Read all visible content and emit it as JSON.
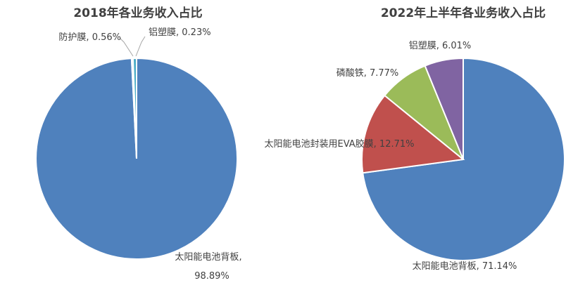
{
  "chart_data": [
    {
      "type": "pie",
      "title": "2018年各业务收入占比",
      "unit": "%",
      "slices": [
        {
          "label": "太阳能电池背板",
          "value": 98.89,
          "value_text": "98.89%",
          "color": "#4f81bd"
        },
        {
          "label": "铝塑膜",
          "value": 0.23,
          "value_text": "0.23%",
          "color": "#8064a2"
        },
        {
          "label": "防护膜",
          "value": 0.56,
          "value_text": "0.56%",
          "color": "#4bacc6"
        }
      ]
    },
    {
      "type": "pie",
      "title": "2022年上半年各业务收入占比",
      "unit": "%",
      "slices": [
        {
          "label": "太阳能电池背板",
          "value": 71.14,
          "value_text": "71.14%",
          "color": "#4f81bd"
        },
        {
          "label": "太阳能电池封装用EVA胶膜",
          "value": 12.71,
          "value_text": "12.71%",
          "color": "#c0504d"
        },
        {
          "label": "磷酸铁",
          "value": 7.77,
          "value_text": "7.77%",
          "color": "#9bbb59"
        },
        {
          "label": "铝塑膜",
          "value": 6.01,
          "value_text": "6.01%",
          "color": "#8064a2"
        }
      ]
    }
  ]
}
